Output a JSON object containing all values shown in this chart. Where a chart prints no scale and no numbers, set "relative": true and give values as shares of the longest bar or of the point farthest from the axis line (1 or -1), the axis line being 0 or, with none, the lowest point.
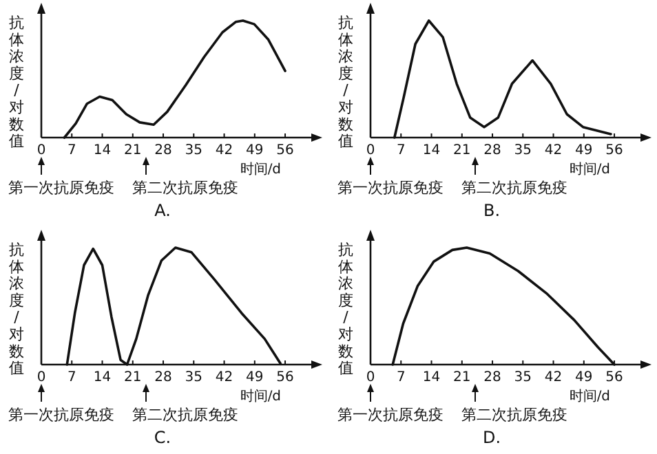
{
  "chart_data": [
    {
      "type": "line",
      "title": "A.",
      "xlabel": "时间/d",
      "ylabel": "抗体浓度/对数值",
      "relative": true,
      "xlim": [
        0,
        62
      ],
      "xticks": [
        0,
        7,
        14,
        21,
        28,
        35,
        42,
        49,
        56
      ],
      "x": [
        5.3,
        7.9,
        10.5,
        13.4,
        16.3,
        19.5,
        22.6,
        25.8,
        28.9,
        33.2,
        37.4,
        41.6,
        44.7,
        46.3,
        48.9,
        52.1,
        56
      ],
      "values": [
        0,
        0.12,
        0.29,
        0.35,
        0.32,
        0.2,
        0.13,
        0.11,
        0.22,
        0.45,
        0.69,
        0.9,
        0.99,
        1,
        0.97,
        0.84,
        0.57
      ],
      "annotations": [
        "第一次抗原免疫",
        "第二次抗原免疫"
      ]
    },
    {
      "type": "line",
      "title": "B.",
      "xlabel": "时间/d",
      "ylabel": "抗体浓度/对数值",
      "relative": true,
      "xlim": [
        0,
        62
      ],
      "xticks": [
        0,
        7,
        14,
        21,
        28,
        35,
        42,
        49,
        56
      ],
      "x": [
        5.5,
        7.6,
        10.3,
        13.4,
        16.6,
        19.8,
        22.9,
        26.1,
        29.3,
        32.5,
        37.2,
        41.4,
        45.1,
        48.8,
        55.2
      ],
      "values": [
        0,
        0.34,
        0.8,
        1,
        0.86,
        0.46,
        0.17,
        0.09,
        0.17,
        0.46,
        0.66,
        0.46,
        0.2,
        0.09,
        0.03
      ],
      "annotations": [
        "第一次抗原免疫",
        "第二次抗原免疫"
      ]
    },
    {
      "type": "line",
      "title": "C.",
      "xlabel": "时间/d",
      "ylabel": "抗体浓度/对数值",
      "relative": true,
      "xlim": [
        0,
        62
      ],
      "xticks": [
        0,
        7,
        14,
        21,
        28,
        35,
        42,
        49,
        56
      ],
      "x": [
        5.9,
        7.7,
        9.8,
        11.9,
        14,
        16.1,
        18.2,
        19.7,
        21.8,
        24.5,
        27.6,
        30.8,
        34.5,
        39.7,
        46,
        51.3,
        54.9
      ],
      "values": [
        0,
        0.44,
        0.85,
        0.99,
        0.85,
        0.41,
        0.04,
        0,
        0.22,
        0.59,
        0.89,
        1,
        0.96,
        0.73,
        0.44,
        0.22,
        0.01
      ],
      "annotations": [
        "第一次抗原免疫",
        "第二次抗原免疫"
      ]
    },
    {
      "type": "line",
      "title": "D.",
      "xlabel": "时间/d",
      "ylabel": "抗体浓度/对数值",
      "relative": true,
      "xlim": [
        0,
        62
      ],
      "xticks": [
        0,
        7,
        14,
        21,
        28,
        35,
        42,
        49,
        56
      ],
      "x": [
        5.1,
        7.5,
        10.8,
        14.5,
        18.8,
        22.1,
        27.4,
        33.9,
        40.4,
        46.8,
        52.2,
        56
      ],
      "values": [
        0,
        0.35,
        0.67,
        0.88,
        0.98,
        1,
        0.95,
        0.8,
        0.61,
        0.38,
        0.15,
        0
      ],
      "annotations": [
        "第一次抗原免疫",
        "第二次抗原免疫"
      ]
    }
  ]
}
